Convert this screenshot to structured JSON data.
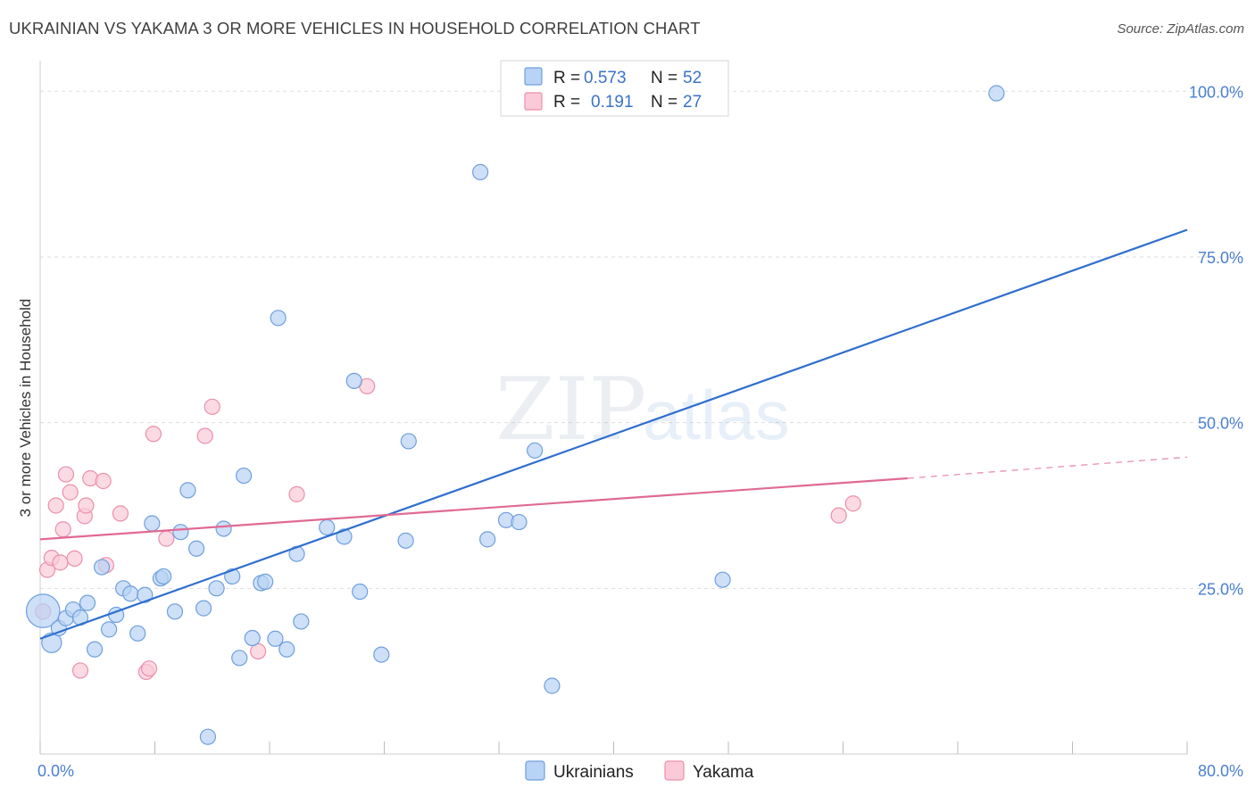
{
  "title": "UKRAINIAN VS YAKAMA 3 OR MORE VEHICLES IN HOUSEHOLD CORRELATION CHART",
  "source": "Source: ZipAtlas.com",
  "colors": {
    "ukrainians_fill": "#b8d3f5",
    "ukrainians_stroke": "#6f9fdc",
    "ukrainians_line": "#2f6fcf",
    "yakama_fill": "#fbcad8",
    "yakama_stroke": "#ea8fab",
    "yakama_line": "#e06a92",
    "tick_label": "#4a7fd0",
    "grid": "#dddddd"
  },
  "legend": {
    "rows": [
      {
        "r_label": "R =",
        "r_value": "0.573",
        "n_label": "N =",
        "n_value": "52"
      },
      {
        "r_label": "R =",
        "r_value": "0.191",
        "n_label": "N =",
        "n_value": "27"
      }
    ]
  },
  "chart_data": {
    "type": "scatter",
    "title": "UKRAINIAN VS YAKAMA 3 OR MORE VEHICLES IN HOUSEHOLD CORRELATION CHART",
    "xlabel": "",
    "ylabel": "3 or more Vehicles in Household",
    "xlim": [
      0,
      80
    ],
    "ylim": [
      0,
      103
    ],
    "x_tick_labels": [
      "0.0%",
      "80.0%"
    ],
    "y_ticks": [
      25,
      50,
      75,
      100
    ],
    "y_tick_labels": [
      "25.0%",
      "50.0%",
      "75.0%",
      "100.0%"
    ],
    "legend_position": "top-center",
    "series": [
      {
        "name": "Ukrainians",
        "points": [
          [
            0.2,
            21.6,
            2.2
          ],
          [
            0.8,
            16.8,
            1.3
          ],
          [
            1.3,
            19.0,
            1
          ],
          [
            1.8,
            20.5,
            1
          ],
          [
            2.3,
            21.8,
            1
          ],
          [
            2.8,
            20.6,
            1
          ],
          [
            3.3,
            22.8,
            1
          ],
          [
            3.8,
            15.8,
            1
          ],
          [
            4.3,
            28.2,
            1
          ],
          [
            4.8,
            18.8,
            1
          ],
          [
            5.3,
            21.0,
            1
          ],
          [
            5.8,
            25.0,
            1
          ],
          [
            6.3,
            24.2,
            1
          ],
          [
            6.8,
            18.2,
            1
          ],
          [
            7.3,
            24.0,
            1
          ],
          [
            7.8,
            34.8,
            1
          ],
          [
            8.4,
            26.5,
            1
          ],
          [
            8.6,
            26.8,
            1
          ],
          [
            9.4,
            21.5,
            1
          ],
          [
            9.8,
            33.5,
            1
          ],
          [
            10.3,
            39.8,
            1
          ],
          [
            10.9,
            31.0,
            1
          ],
          [
            11.4,
            22.0,
            1
          ],
          [
            11.7,
            2.6,
            1
          ],
          [
            12.3,
            25.0,
            1
          ],
          [
            12.8,
            34.0,
            1
          ],
          [
            13.4,
            26.8,
            1
          ],
          [
            13.9,
            14.5,
            1
          ],
          [
            14.2,
            42.0,
            1
          ],
          [
            14.8,
            17.5,
            1
          ],
          [
            15.4,
            25.8,
            1
          ],
          [
            15.7,
            26.0,
            1
          ],
          [
            16.4,
            17.4,
            1
          ],
          [
            16.6,
            65.8,
            1
          ],
          [
            17.2,
            15.8,
            1
          ],
          [
            17.9,
            30.2,
            1
          ],
          [
            18.2,
            20.0,
            1
          ],
          [
            20.0,
            34.2,
            1
          ],
          [
            21.2,
            32.8,
            1
          ],
          [
            21.9,
            56.3,
            1
          ],
          [
            22.3,
            24.5,
            1
          ],
          [
            23.8,
            15.0,
            1
          ],
          [
            25.5,
            32.2,
            1
          ],
          [
            25.7,
            47.2,
            1
          ],
          [
            30.7,
            87.8,
            1
          ],
          [
            31.2,
            32.4,
            1
          ],
          [
            32.5,
            35.3,
            1
          ],
          [
            33.4,
            35.0,
            1
          ],
          [
            34.5,
            45.8,
            1
          ],
          [
            35.7,
            10.3,
            1
          ],
          [
            47.6,
            26.3,
            1
          ],
          [
            66.7,
            99.7,
            1
          ]
        ],
        "trend": {
          "x0": 0,
          "y0": 17.4,
          "x1": 80,
          "y1": 79.1
        }
      },
      {
        "name": "Yakama",
        "points": [
          [
            0.2,
            21.5,
            1
          ],
          [
            0.5,
            27.8,
            1
          ],
          [
            0.8,
            29.6,
            1
          ],
          [
            1.1,
            37.5,
            1
          ],
          [
            1.4,
            28.9,
            1
          ],
          [
            1.6,
            33.9,
            1
          ],
          [
            1.8,
            42.2,
            1
          ],
          [
            2.1,
            39.5,
            1
          ],
          [
            2.4,
            29.5,
            1
          ],
          [
            2.8,
            12.6,
            1
          ],
          [
            3.1,
            35.9,
            1
          ],
          [
            3.2,
            37.5,
            1
          ],
          [
            3.5,
            41.6,
            1
          ],
          [
            4.4,
            41.2,
            1
          ],
          [
            4.6,
            28.5,
            1
          ],
          [
            5.6,
            36.3,
            1
          ],
          [
            7.4,
            12.4,
            1
          ],
          [
            7.6,
            12.9,
            1
          ],
          [
            7.9,
            48.3,
            1
          ],
          [
            8.8,
            32.5,
            1
          ],
          [
            11.5,
            48.0,
            1
          ],
          [
            12.0,
            52.4,
            1
          ],
          [
            15.2,
            15.5,
            1
          ],
          [
            17.9,
            39.2,
            1
          ],
          [
            22.8,
            55.5,
            1
          ],
          [
            55.7,
            36.0,
            1
          ],
          [
            56.7,
            37.8,
            1
          ]
        ],
        "trend": {
          "x0": 0,
          "y0": 32.4,
          "x1": 60.5,
          "y1": 41.6
        },
        "trend_dashed": {
          "x0": 60.5,
          "y0": 41.6,
          "x1": 80,
          "y1": 44.8
        }
      }
    ]
  },
  "bottom_legend": [
    "Ukrainians",
    "Yakama"
  ],
  "watermark": "ZIPatlas"
}
